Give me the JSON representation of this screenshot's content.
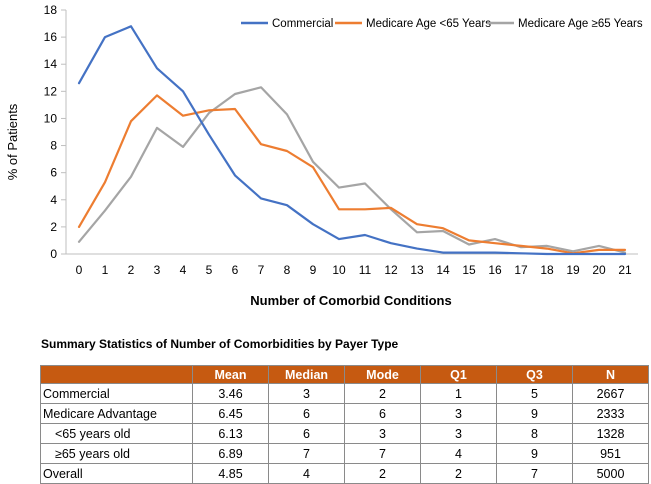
{
  "chart_data": {
    "type": "line",
    "title": "",
    "xlabel": "Number of Comorbid Conditions",
    "ylabel": "% of Patients",
    "ylim": [
      0,
      18
    ],
    "yticks": [
      0,
      2,
      4,
      6,
      8,
      10,
      12,
      14,
      16,
      18
    ],
    "x": [
      0,
      1,
      2,
      3,
      4,
      5,
      6,
      7,
      8,
      9,
      10,
      11,
      12,
      13,
      14,
      15,
      16,
      17,
      18,
      19,
      20,
      21
    ],
    "legend_position": "top-right",
    "series": [
      {
        "name": "Commercial",
        "color": "#4472c4",
        "values": [
          12.6,
          16.0,
          16.8,
          13.7,
          12.0,
          8.8,
          5.8,
          4.1,
          3.6,
          2.2,
          1.1,
          1.4,
          0.8,
          0.4,
          0.1,
          0.1,
          0.1,
          0.05,
          0.0,
          0.0,
          0.0,
          0.0
        ]
      },
      {
        "name": "Medicare Age <65 Years",
        "color": "#ed7d31",
        "values": [
          2.0,
          5.3,
          9.8,
          11.7,
          10.2,
          10.6,
          10.7,
          8.1,
          7.6,
          6.4,
          3.3,
          3.3,
          3.4,
          2.2,
          1.9,
          1.0,
          0.8,
          0.6,
          0.4,
          0.05,
          0.3,
          0.3
        ]
      },
      {
        "name": "Medicare Age ≥65 Years",
        "color": "#a5a5a5",
        "values": [
          0.9,
          3.2,
          5.7,
          9.3,
          7.9,
          10.4,
          11.8,
          12.3,
          10.3,
          6.8,
          4.9,
          5.2,
          3.3,
          1.6,
          1.7,
          0.7,
          1.1,
          0.5,
          0.6,
          0.2,
          0.6,
          0.1
        ]
      }
    ]
  },
  "table": {
    "title": "Summary Statistics of Number of Comorbidities by Payer Type",
    "header_color": "#c65a11",
    "columns": [
      "",
      "Mean",
      "Median",
      "Mode",
      "Q1",
      "Q3",
      "N"
    ],
    "rows": [
      {
        "label": "Commercial",
        "indent": false,
        "cells": [
          "3.46",
          "3",
          "2",
          "1",
          "5",
          "2667"
        ]
      },
      {
        "label": "Medicare Advantage",
        "indent": false,
        "cells": [
          "6.45",
          "6",
          "6",
          "3",
          "9",
          "2333"
        ]
      },
      {
        "label": "<65 years old",
        "indent": true,
        "cells": [
          "6.13",
          "6",
          "3",
          "3",
          "8",
          "1328"
        ]
      },
      {
        "label": "≥65 years old",
        "indent": true,
        "cells": [
          "6.89",
          "7",
          "7",
          "4",
          "9",
          "951"
        ]
      },
      {
        "label": "Overall",
        "indent": false,
        "cells": [
          "4.85",
          "4",
          "2",
          "2",
          "7",
          "5000"
        ]
      }
    ]
  }
}
